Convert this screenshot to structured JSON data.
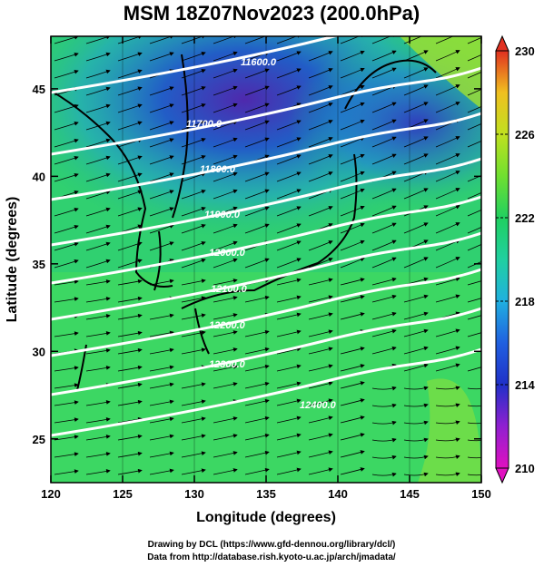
{
  "title": "MSM 18Z07Nov2023 (200.0hPa)",
  "x_axis": {
    "label": "Longitude (degrees)",
    "range": [
      120,
      150
    ],
    "ticks": [
      120,
      125,
      130,
      135,
      140,
      145,
      150
    ]
  },
  "y_axis": {
    "label": "Latitude  (degrees)",
    "range": [
      22.5,
      48
    ],
    "ticks": [
      25,
      30,
      35,
      40,
      45
    ]
  },
  "colorbar": {
    "range": [
      210,
      230
    ],
    "tick_labels": [
      210,
      214,
      218,
      222,
      226,
      230
    ],
    "colors": [
      "#e010c0",
      "#9020d0",
      "#2030c8",
      "#2060e0",
      "#20b0e0",
      "#20d0a0",
      "#20d060",
      "#70e030",
      "#c0e020",
      "#f0c020",
      "#f08020",
      "#e03020"
    ]
  },
  "geopotential_contours": [
    {
      "label": "11600.0",
      "value": 11600
    },
    {
      "label": "11700.0",
      "value": 11700
    },
    {
      "label": "11800.0",
      "value": 11800
    },
    {
      "label": "11900.0",
      "value": 11900
    },
    {
      "label": "12000.0",
      "value": 12000
    },
    {
      "label": "12100.0",
      "value": 12100
    },
    {
      "label": "12200.0",
      "value": 12200
    },
    {
      "label": "12300.0",
      "value": 12300
    },
    {
      "label": "12400.0",
      "value": 12400
    }
  ],
  "footer": {
    "line1": "Drawing by DCL (https://www.gfd-dennou.org/library/dcl/)",
    "line2": "Data from http://database.rish.kyoto-u.ac.jp/arch/jmadata/"
  }
}
